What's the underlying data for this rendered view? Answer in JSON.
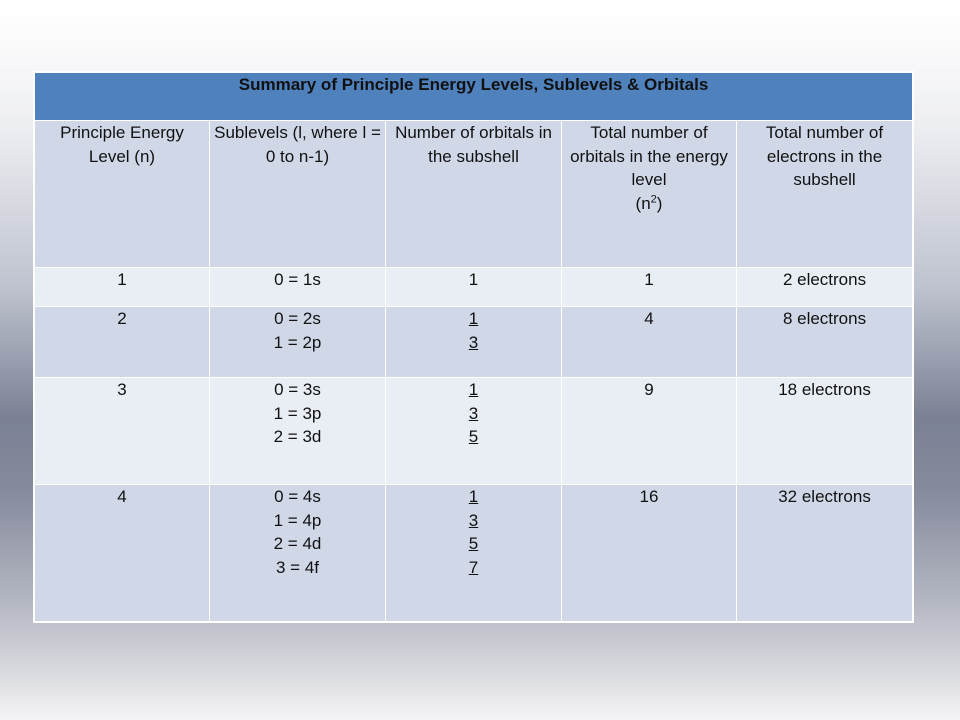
{
  "table": {
    "title": "Summary of Principle Energy Levels, Sublevels & Orbitals",
    "headers": {
      "principle": "Principle Energy Level (n)",
      "sublevels": "Sublevels (l, where l = 0 to n-1)",
      "orbitals_sub": "Number of orbitals in the subshell",
      "total_orbitals_text": "Total number of orbitals in the energy level",
      "total_orbitals_formula_open": "(n",
      "total_orbitals_formula_exp": "2",
      "total_orbitals_formula_close": ")",
      "electrons": "Total number of electrons in the subshell"
    },
    "rows": [
      {
        "n": "1",
        "sublevels": [
          "0 = 1s"
        ],
        "orbitals": [
          "1"
        ],
        "total": "1",
        "electrons": "2 electrons"
      },
      {
        "n": "2",
        "sublevels": [
          "0 = 2s",
          "1 = 2p"
        ],
        "orbitals": [
          "1",
          "3"
        ],
        "total": "4",
        "electrons": "8 electrons"
      },
      {
        "n": "3",
        "sublevels": [
          "0 = 3s",
          "1 = 3p",
          "2 = 3d"
        ],
        "orbitals": [
          "1",
          "3",
          "5"
        ],
        "total": "9",
        "electrons": "18 electrons"
      },
      {
        "n": "4",
        "sublevels": [
          "0 = 4s",
          "1 = 4p",
          "2 = 4d",
          "3 = 4f"
        ],
        "orbitals": [
          "1",
          "3",
          "5",
          "7"
        ],
        "total": "16",
        "electrons": "32 electrons"
      }
    ]
  },
  "colors": {
    "title_bg": "#4f81bd",
    "row_dark": "#d0d8e8",
    "row_light": "#e9edf4"
  }
}
